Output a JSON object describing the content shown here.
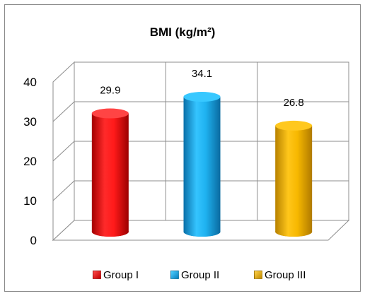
{
  "chart_data": {
    "type": "bar",
    "title": "BMI (kg/m²)",
    "categories": [
      "Group I",
      "Group II",
      "Group III"
    ],
    "values": [
      29.9,
      34.1,
      26.8
    ],
    "data_labels": [
      "29.9",
      "34.1",
      "26.8"
    ],
    "ylim": [
      0,
      40
    ],
    "yticks": [
      "0",
      "10",
      "20",
      "30",
      "40"
    ],
    "grid": true,
    "legend_position": "bottom",
    "colors": [
      "#ee1111",
      "#17a9e8",
      "#f2b200"
    ],
    "style": "3d-cylinder"
  }
}
